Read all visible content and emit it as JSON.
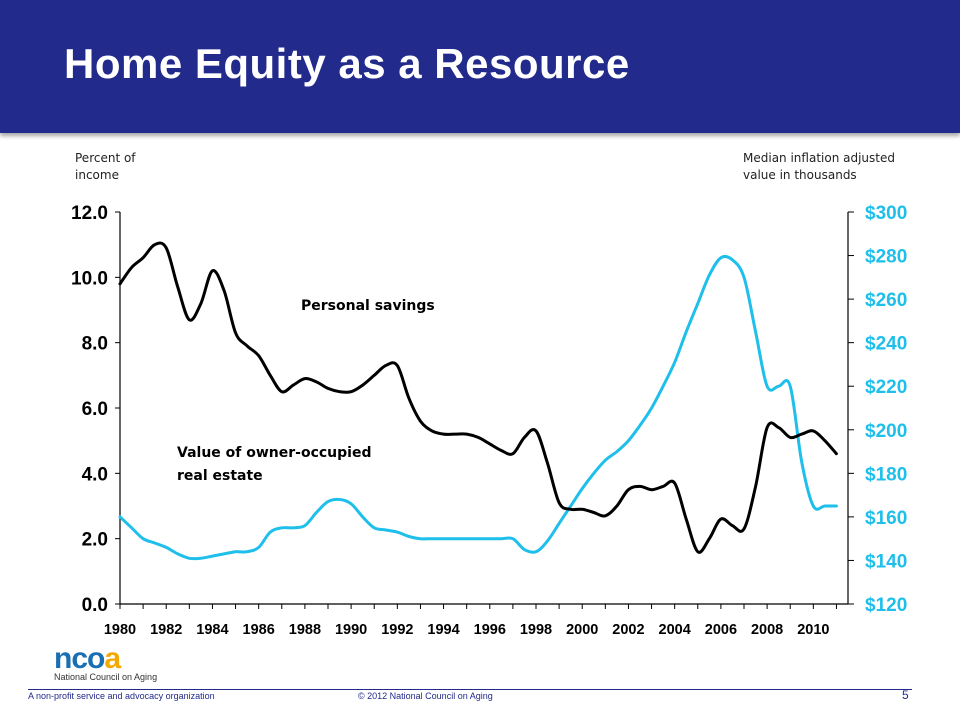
{
  "slide": {
    "title": "Home Equity as a Resource",
    "page_number": "5",
    "footer_left": "A non-profit service and advocacy organization",
    "footer_center": "© 2012 National Council on Aging",
    "logo": {
      "text": "ncoa",
      "subtitle": "National Council on Aging"
    }
  },
  "colors": {
    "header": "#222a8c",
    "savings_line": "#000000",
    "realestate_line": "#1ebfea",
    "right_axis_labels": "#1ebfea"
  },
  "chart_data": {
    "type": "line",
    "left_axis_label": "Percent of income",
    "right_axis_label": "Median inflation adjusted value in thousands",
    "ylim_left": [
      0,
      12
    ],
    "ylim_right": [
      120,
      300
    ],
    "left_ticks": [
      "0.0",
      "2.0",
      "4.0",
      "6.0",
      "8.0",
      "10.0",
      "12.0"
    ],
    "right_ticks": [
      "$120",
      "$140",
      "$160",
      "$180",
      "$200",
      "$220",
      "$240",
      "$260",
      "$280",
      "$300"
    ],
    "x_ticks": [
      "1980",
      "1982",
      "1984",
      "1986",
      "1988",
      "1990",
      "1992",
      "1994",
      "1996",
      "1998",
      "2000",
      "2002",
      "2004",
      "2006",
      "2008",
      "2010"
    ],
    "xlim": [
      1980,
      2011.5
    ],
    "series": [
      {
        "name": "Personal savings",
        "axis": "left",
        "x": [
          1980,
          1980.5,
          1981,
          1981.5,
          1982,
          1982.5,
          1983,
          1983.5,
          1984,
          1984.5,
          1985,
          1985.5,
          1986,
          1986.5,
          1987,
          1987.5,
          1988,
          1988.5,
          1989,
          1989.5,
          1990,
          1990.5,
          1991,
          1991.5,
          1992,
          1992.5,
          1993,
          1993.5,
          1994,
          1994.5,
          1995,
          1995.5,
          1996,
          1996.5,
          1997,
          1997.5,
          1998,
          1998.5,
          1999,
          1999.5,
          2000,
          2000.5,
          2001,
          2001.5,
          2002,
          2002.5,
          2003,
          2003.5,
          2004,
          2004.5,
          2005,
          2005.5,
          2006,
          2006.5,
          2007,
          2007.5,
          2008,
          2008.5,
          2009,
          2009.5,
          2010,
          2010.5,
          2011
        ],
        "values": [
          9.8,
          10.3,
          10.6,
          11.0,
          10.9,
          9.7,
          8.7,
          9.2,
          10.2,
          9.6,
          8.3,
          7.9,
          7.6,
          7.0,
          6.5,
          6.7,
          6.9,
          6.8,
          6.6,
          6.5,
          6.5,
          6.7,
          7.0,
          7.3,
          7.3,
          6.3,
          5.6,
          5.3,
          5.2,
          5.2,
          5.2,
          5.1,
          4.9,
          4.7,
          4.6,
          5.1,
          5.3,
          4.3,
          3.1,
          2.9,
          2.9,
          2.8,
          2.7,
          3.0,
          3.5,
          3.6,
          3.5,
          3.6,
          3.7,
          2.6,
          1.6,
          2.0,
          2.6,
          2.4,
          2.3,
          3.6,
          5.4,
          5.4,
          5.1,
          5.2,
          5.3,
          5.0,
          4.6
        ]
      },
      {
        "name": "Value of owner-occupied real estate",
        "axis": "right",
        "x": [
          1980,
          1980.5,
          1981,
          1981.5,
          1982,
          1982.5,
          1983,
          1983.5,
          1984,
          1984.5,
          1985,
          1985.5,
          1986,
          1986.5,
          1987,
          1987.5,
          1988,
          1988.5,
          1989,
          1989.5,
          1990,
          1990.5,
          1991,
          1991.5,
          1992,
          1992.5,
          1993,
          1993.5,
          1994,
          1994.5,
          1995,
          1995.5,
          1996,
          1996.5,
          1997,
          1997.5,
          1998,
          1998.5,
          1999,
          1999.5,
          2000,
          2000.5,
          2001,
          2001.5,
          2002,
          2002.5,
          2003,
          2003.5,
          2004,
          2004.5,
          2005,
          2005.5,
          2006,
          2006.5,
          2007,
          2007.5,
          2008,
          2008.5,
          2009,
          2009.5,
          2010,
          2010.5,
          2011
        ],
        "values": [
          160,
          155,
          150,
          148,
          146,
          143,
          141,
          141,
          142,
          143,
          144,
          144,
          146,
          153,
          155,
          155,
          156,
          162,
          167,
          168,
          166,
          160,
          155,
          154,
          153,
          151,
          150,
          150,
          150,
          150,
          150,
          150,
          150,
          150,
          150,
          145,
          144,
          149,
          157,
          165,
          173,
          180,
          186,
          190,
          195,
          202,
          210,
          220,
          231,
          245,
          258,
          271,
          279,
          278,
          270,
          245,
          220,
          220,
          220,
          185,
          165,
          165,
          165
        ]
      }
    ],
    "annotations": [
      {
        "text": "Personal savings"
      },
      {
        "text": "Value of owner-occupied\nreal estate"
      }
    ]
  }
}
